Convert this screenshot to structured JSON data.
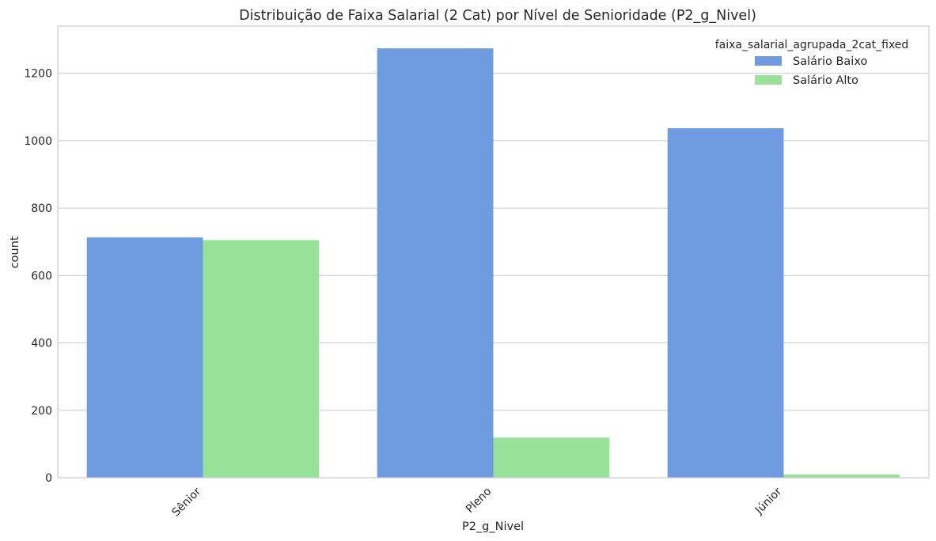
{
  "chart_data": {
    "type": "bar",
    "title": "Distribuição de Faixa Salarial (2 Cat) por Nível de Senioridade (P2_g_Nivel)",
    "xlabel": "P2_g_Nivel",
    "ylabel": "count",
    "categories": [
      "Sênior",
      "Pleno",
      "Júnior"
    ],
    "series": [
      {
        "name": "Salário Baixo",
        "color": "#6f9ce0",
        "values": [
          713,
          1274,
          1037
        ]
      },
      {
        "name": "Salário Alto",
        "color": "#98e29a",
        "values": [
          705,
          119,
          10
        ]
      }
    ],
    "ylim": [
      0,
      1340
    ],
    "yticks": [
      0,
      200,
      400,
      600,
      800,
      1000,
      1200
    ],
    "grid": true,
    "legend": {
      "title": "faixa_salarial_agrupada_2cat_fixed",
      "placement": "top-right"
    }
  }
}
